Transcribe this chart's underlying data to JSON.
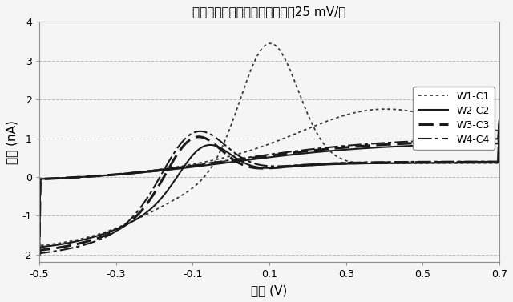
{
  "title": "サイクリックボルタンメトリ、25 mV/秒",
  "xlabel": "電位 (V)",
  "ylabel": "電流 (nA)",
  "xlim": [
    -0.5,
    0.7
  ],
  "ylim": [
    -2.2,
    4.0
  ],
  "xticks": [
    -0.5,
    -0.3,
    -0.1,
    0.1,
    0.3,
    0.5,
    0.7
  ],
  "yticks": [
    -2,
    -1,
    0,
    1,
    2,
    3,
    4
  ],
  "grid_color": "#b0b0b0",
  "background_color": "#f0f0f0",
  "legend_labels": [
    "W1-C1",
    "W2-C2",
    "W3-C3",
    "W4-C4"
  ]
}
